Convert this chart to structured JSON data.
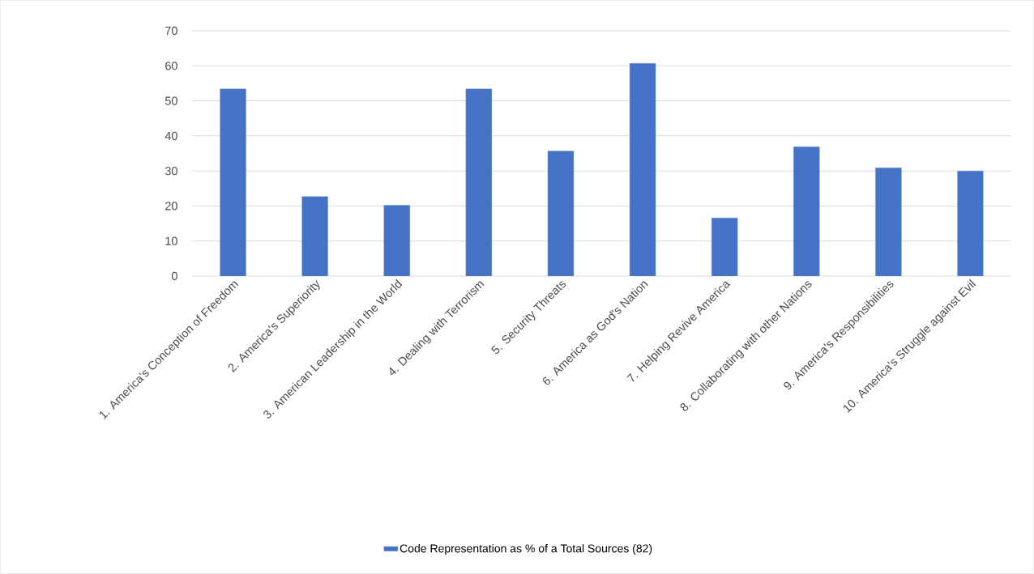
{
  "chart_data": {
    "type": "bar",
    "categories": [
      "1. America's Conception of Freedom",
      "2. America's Superiority",
      "3. American Leadership in the World",
      "4. Dealing with Terrorism",
      "5. Security Threats",
      "6. America as God's Nation",
      "7. Helping Revive America",
      "8. Collaborating with other Nations",
      "9. America's Responsibilities",
      "10. America's Struggle against Evil"
    ],
    "series": [
      {
        "name": "Code Representation as %  of a Total Sources (82)",
        "color": "#4472c4",
        "values": [
          53.4,
          22.7,
          20.2,
          53.4,
          35.7,
          60.7,
          16.6,
          36.9,
          30.9,
          30.0
        ]
      }
    ],
    "ylim": [
      0,
      70
    ],
    "yticks": [
      0,
      10,
      20,
      30,
      40,
      50,
      60,
      70
    ],
    "grid": "y",
    "legend": "bottom"
  }
}
